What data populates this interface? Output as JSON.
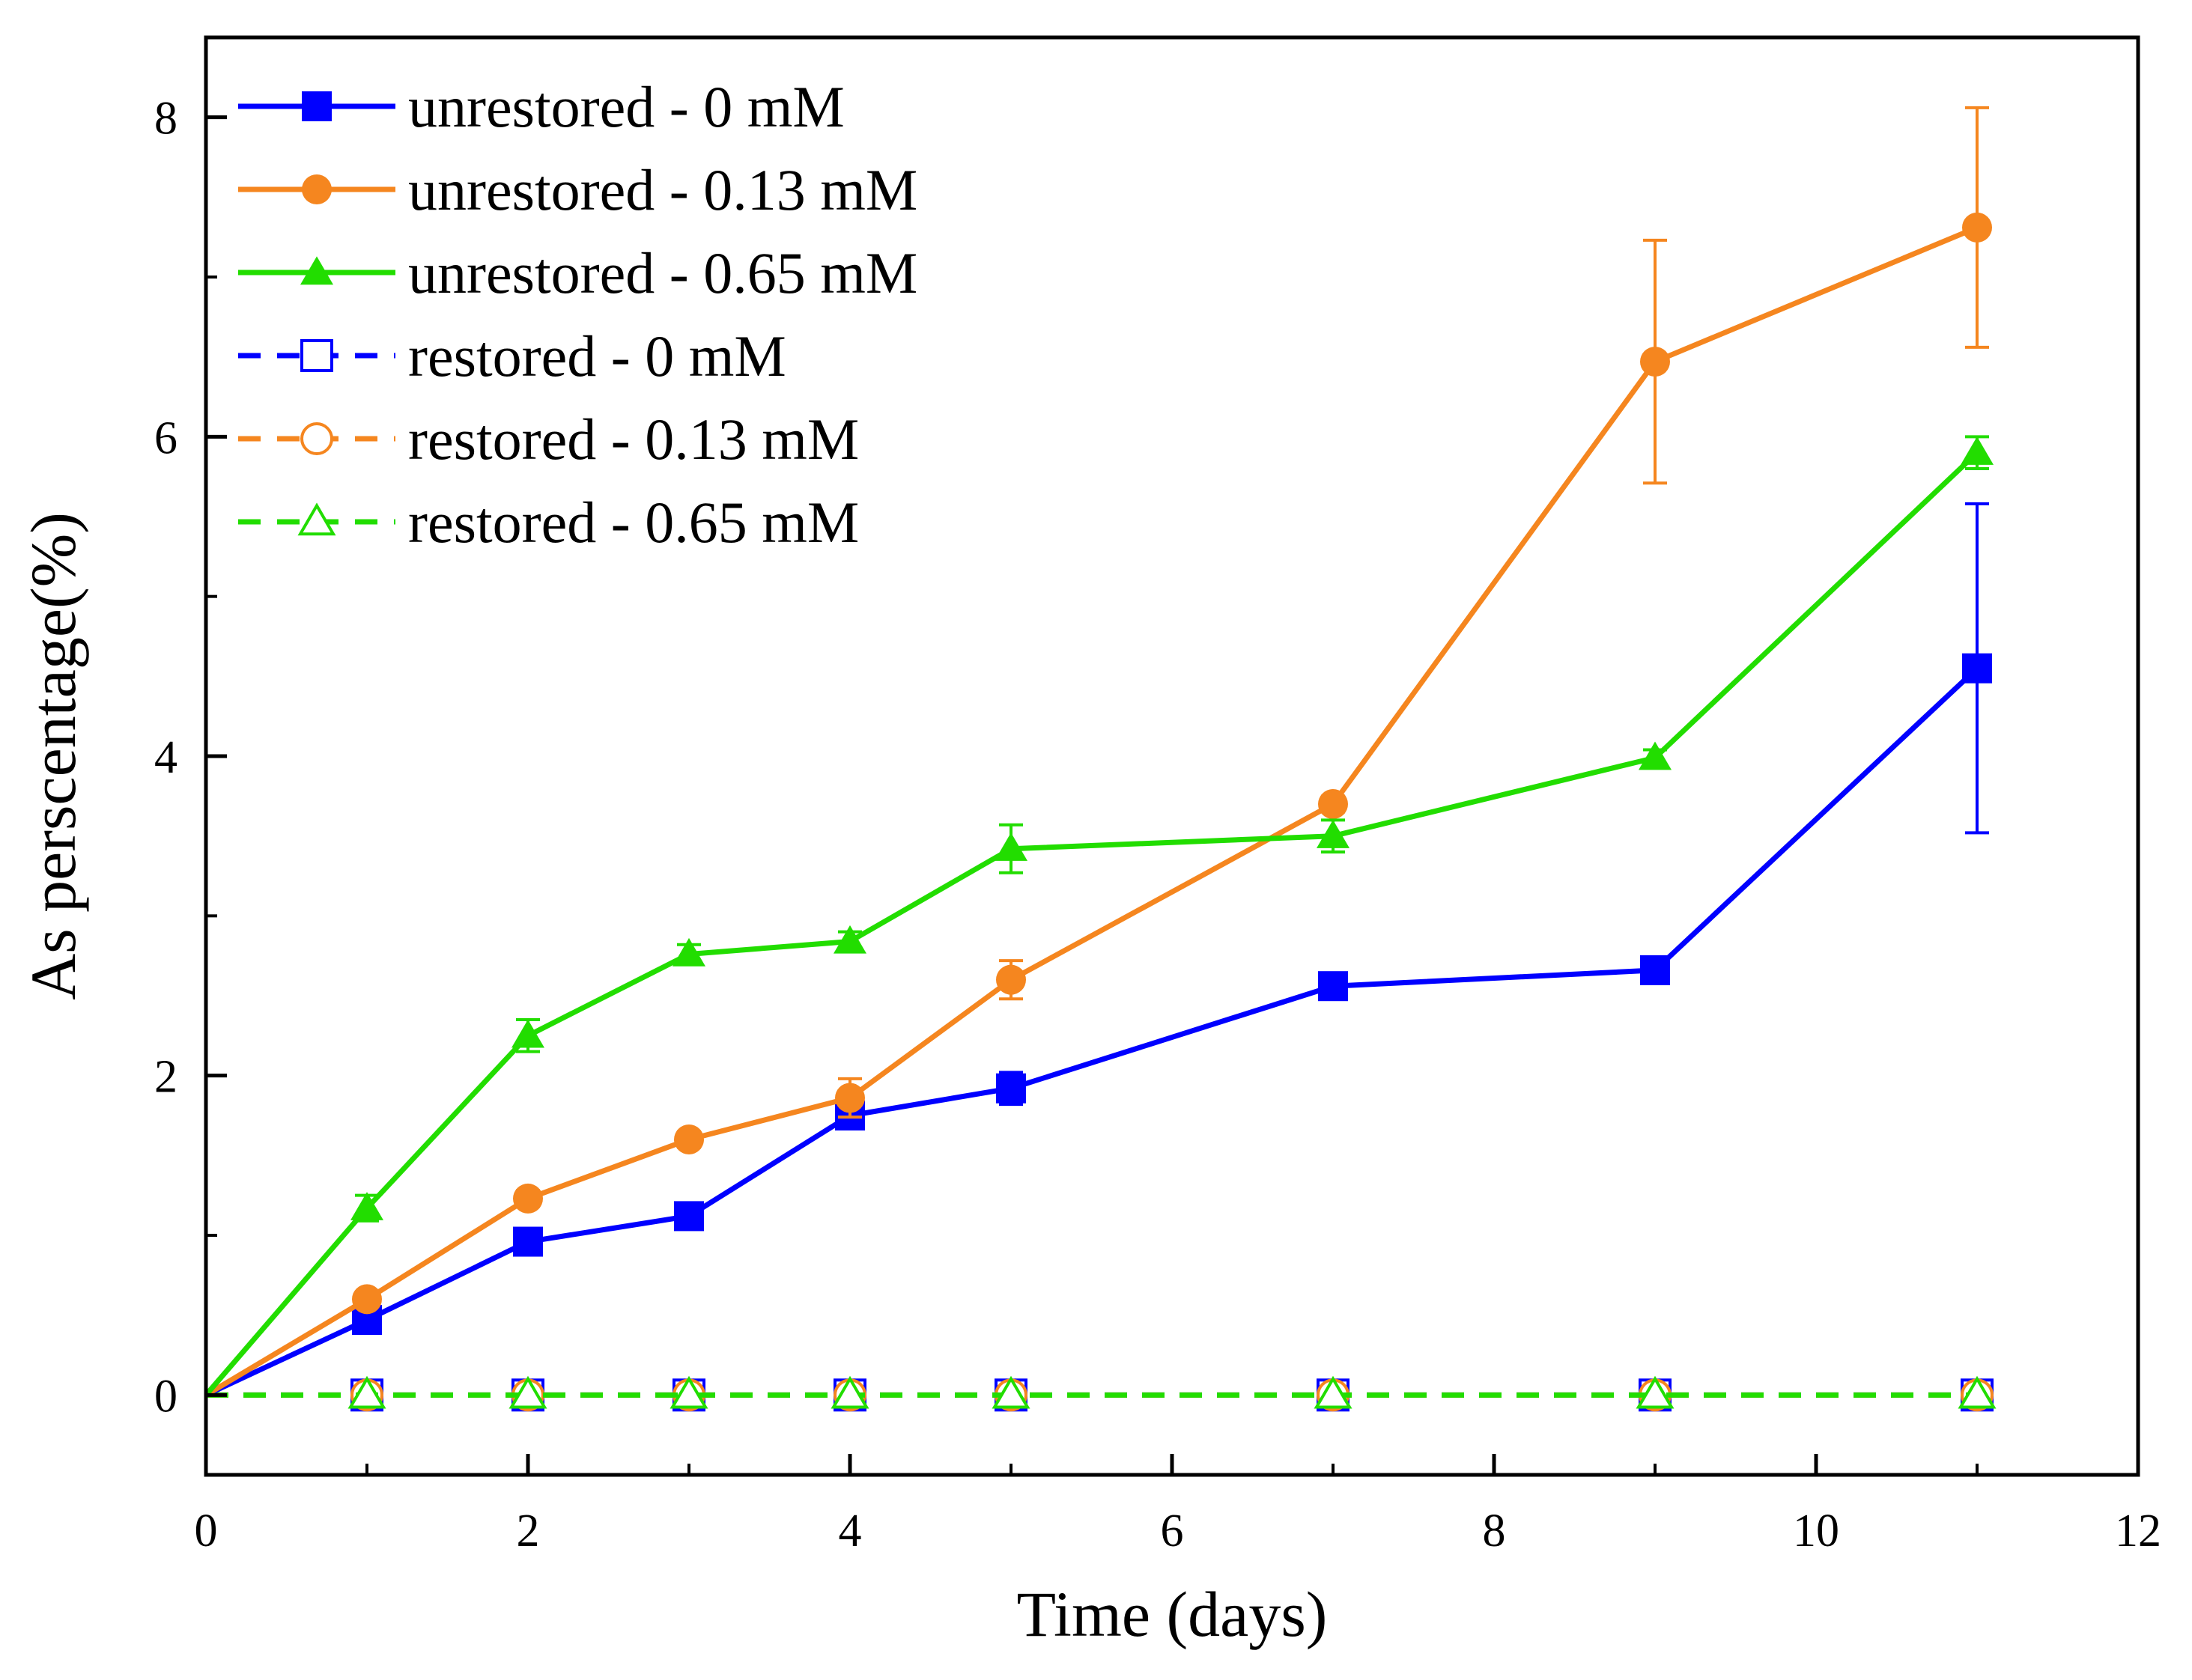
{
  "chart_data": {
    "type": "line",
    "title": "",
    "xlabel": "Time (days)",
    "ylabel": "As perscentage(%)",
    "xlim": [
      0,
      12
    ],
    "ylim": [
      -0.5,
      8.5
    ],
    "xticks": [
      0,
      2,
      4,
      6,
      8,
      10,
      12
    ],
    "yticks": [
      0,
      2,
      4,
      6,
      8
    ],
    "xtick_labels": [
      "0",
      "2",
      "4",
      "6",
      "8",
      "10",
      "12"
    ],
    "ytick_labels": [
      "0",
      "2",
      "4",
      "6",
      "8"
    ],
    "grid": false,
    "legend_position": "top-left",
    "x": [
      0,
      1,
      2,
      3,
      4,
      5,
      7,
      9,
      11
    ],
    "series": [
      {
        "name": "unrestored - 0 mM",
        "color": "#0000ff",
        "marker": "square",
        "filled": true,
        "dashed": false,
        "values": [
          0,
          0.47,
          0.96,
          1.12,
          1.75,
          1.92,
          2.56,
          2.66,
          4.55
        ],
        "errors": [
          0,
          0.04,
          0.05,
          0.05,
          0.06,
          0.1,
          0.06,
          0.05,
          1.03
        ]
      },
      {
        "name": "unrestored - 0.13 mM",
        "color": "#f5861f",
        "marker": "circle",
        "filled": true,
        "dashed": false,
        "values": [
          0,
          0.6,
          1.23,
          1.6,
          1.86,
          2.6,
          3.7,
          6.47,
          7.31
        ],
        "errors": [
          0,
          0.04,
          0.05,
          0.05,
          0.12,
          0.12,
          0.05,
          0.76,
          0.75
        ]
      },
      {
        "name": "unrestored - 0.65 mM",
        "color": "#22dd00",
        "marker": "triangle",
        "filled": true,
        "dashed": false,
        "values": [
          0,
          1.17,
          2.25,
          2.76,
          2.84,
          3.42,
          3.5,
          3.99,
          5.9
        ],
        "errors": [
          0,
          0.08,
          0.1,
          0.06,
          0.06,
          0.15,
          0.1,
          0.05,
          0.1
        ]
      },
      {
        "name": "restored - 0 mM",
        "color": "#0000ff",
        "marker": "square",
        "filled": false,
        "dashed": true,
        "values": [
          0,
          0,
          0,
          0,
          0,
          0,
          0,
          0,
          0
        ],
        "errors": [
          0,
          0,
          0,
          0,
          0,
          0,
          0,
          0,
          0
        ]
      },
      {
        "name": "restored - 0.13 mM",
        "color": "#f5861f",
        "marker": "circle",
        "filled": false,
        "dashed": true,
        "values": [
          0,
          0,
          0,
          0,
          0,
          0,
          0,
          0,
          0
        ],
        "errors": [
          0,
          0,
          0,
          0,
          0,
          0,
          0,
          0,
          0
        ]
      },
      {
        "name": "restored - 0.65 mM",
        "color": "#22dd00",
        "marker": "triangle",
        "filled": false,
        "dashed": true,
        "values": [
          0,
          0,
          0,
          0,
          0,
          0,
          0,
          0,
          0
        ],
        "errors": [
          0,
          0,
          0,
          0,
          0,
          0,
          0,
          0,
          0
        ]
      }
    ]
  }
}
